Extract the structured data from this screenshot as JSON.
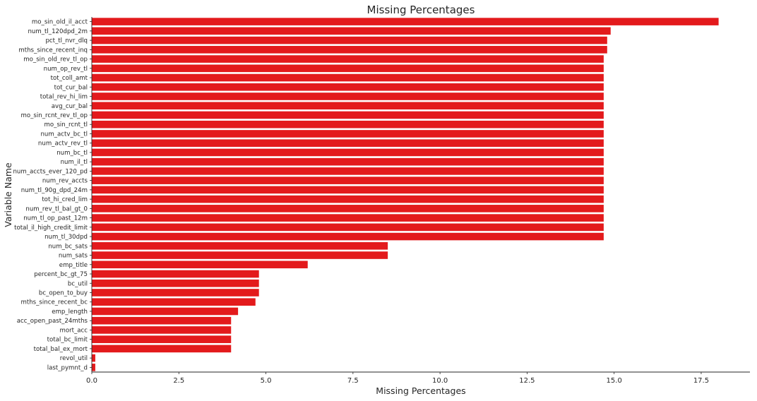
{
  "chart_data": {
    "type": "bar",
    "orientation": "horizontal",
    "title": "Missing Percentages",
    "xlabel": "Missing Percentages",
    "ylabel": "Variable Name",
    "xlim": [
      0,
      18.9
    ],
    "xticks": [
      0,
      2.5,
      5,
      7.5,
      10,
      12.5,
      15,
      17.5
    ],
    "xtick_labels": [
      "0.0",
      "2.5",
      "5.0",
      "7.5",
      "10.0",
      "12.5",
      "15.0",
      "17.5"
    ],
    "grid": false,
    "bar_color": "#e31a1c",
    "categories": [
      "mo_sin_old_il_acct",
      "num_tl_120dpd_2m",
      "pct_tl_nvr_dlq",
      "mths_since_recent_inq",
      "mo_sin_old_rev_tl_op",
      "num_op_rev_tl",
      "tot_coll_amt",
      "tot_cur_bal",
      "total_rev_hi_lim",
      "avg_cur_bal",
      "mo_sin_rcnt_rev_tl_op",
      "mo_sin_rcnt_tl",
      "num_actv_bc_tl",
      "num_actv_rev_tl",
      "num_bc_tl",
      "num_il_tl",
      "num_accts_ever_120_pd",
      "num_rev_accts",
      "num_tl_90g_dpd_24m",
      "tot_hi_cred_lim",
      "num_rev_tl_bal_gt_0",
      "num_tl_op_past_12m",
      "total_il_high_credit_limit",
      "num_tl_30dpd",
      "num_bc_sats",
      "num_sats",
      "emp_title",
      "percent_bc_gt_75",
      "bc_util",
      "bc_open_to_buy",
      "mths_since_recent_bc",
      "emp_length",
      "acc_open_past_24mths",
      "mort_acc",
      "total_bc_limit",
      "total_bal_ex_mort",
      "revol_util",
      "last_pymnt_d"
    ],
    "values": [
      18.0,
      14.9,
      14.8,
      14.8,
      14.7,
      14.7,
      14.7,
      14.7,
      14.7,
      14.7,
      14.7,
      14.7,
      14.7,
      14.7,
      14.7,
      14.7,
      14.7,
      14.7,
      14.7,
      14.7,
      14.7,
      14.7,
      14.7,
      14.7,
      8.5,
      8.5,
      6.2,
      4.8,
      4.8,
      4.8,
      4.7,
      4.2,
      4.0,
      4.0,
      4.0,
      4.0,
      0.1,
      0.1
    ]
  }
}
